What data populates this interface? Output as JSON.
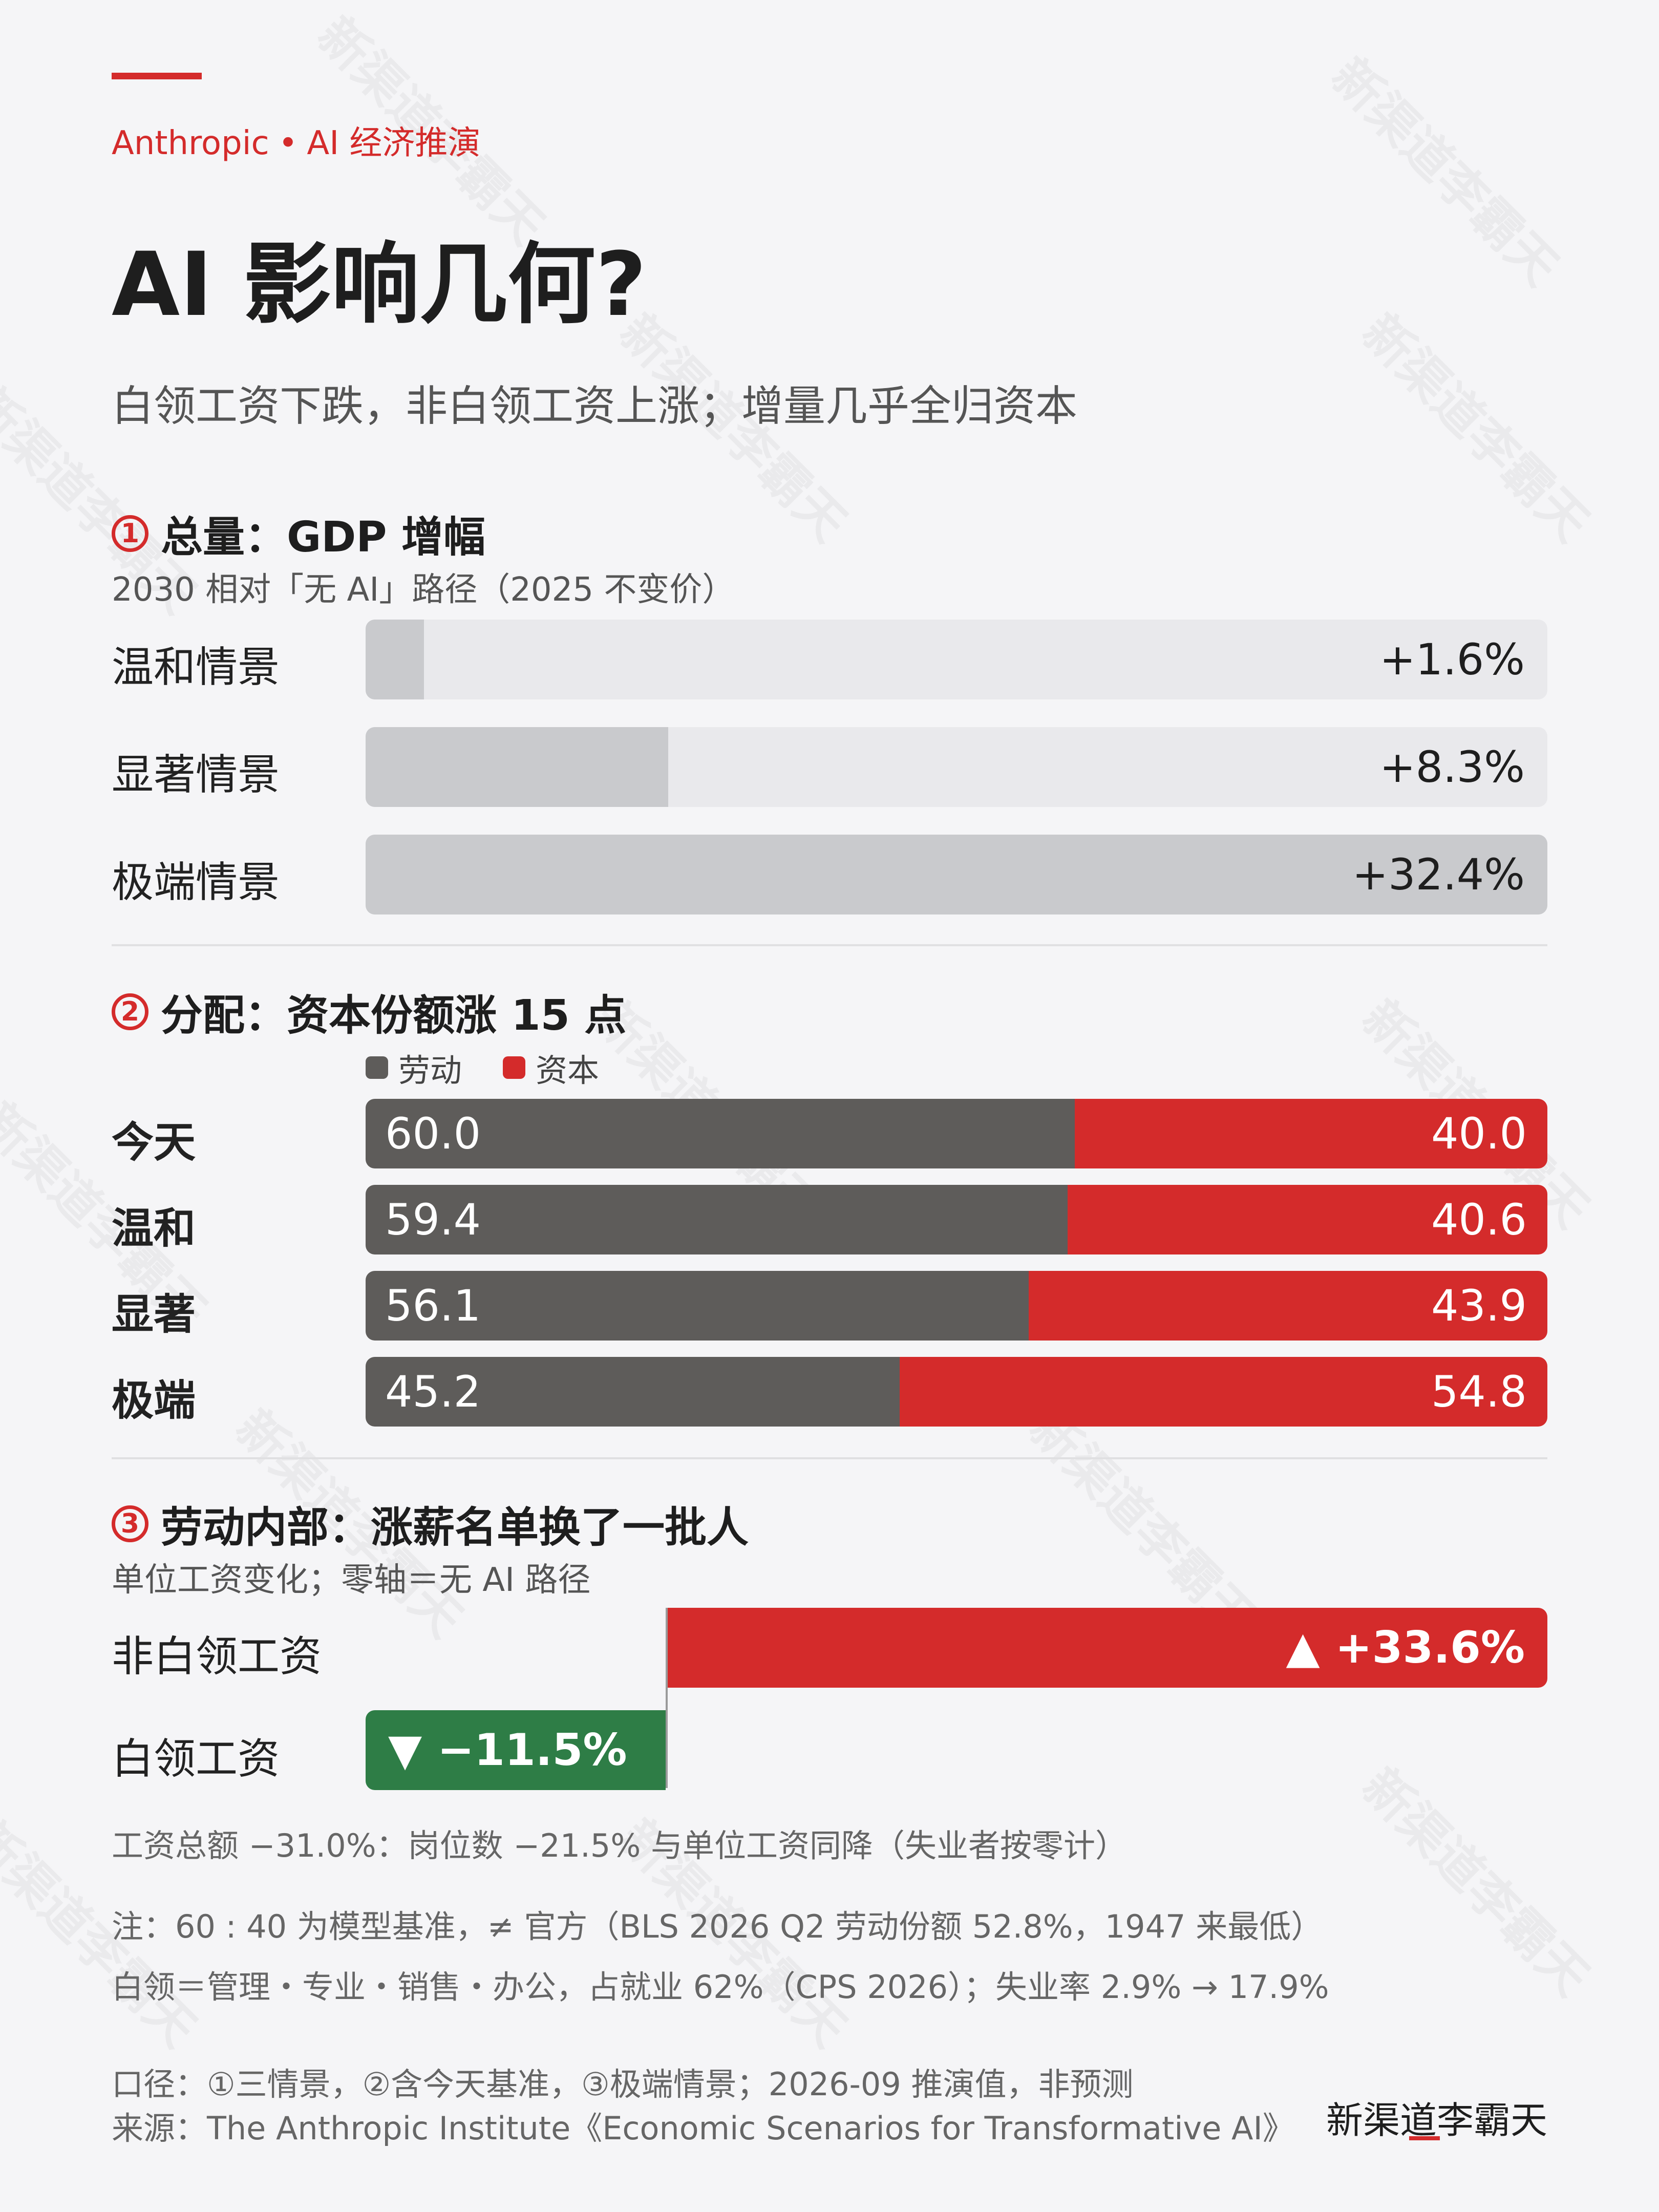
{
  "header": {
    "kicker_brand": "Anthropic",
    "kicker_dot": "•",
    "kicker_topic": "AI 经济推演",
    "title": "AI 影响几何?",
    "subtitle": "白领工资下跌，非白领工资上涨；增量几乎全归资本"
  },
  "watermark": "新渠道李霸天",
  "colors": {
    "accent": "#d42b2b",
    "labor": "#5e5c5a",
    "capital": "#d42b2b",
    "positive": "#d42b2b",
    "negative": "#2e7d46",
    "gdp_bar": "#c9cacd",
    "gdp_track": "#e9e9ec"
  },
  "sections": {
    "s1": {
      "num": "1",
      "title": "总量：GDP 增幅",
      "sub": "2030 相对「无 AI」路径（2025 不变价）"
    },
    "s2": {
      "num": "2",
      "title": "分配：资本份额涨 15 点"
    },
    "s3": {
      "num": "3",
      "title": "劳动内部：涨薪名单换了一批人",
      "sub": "单位工资变化；零轴＝无 AI 路径"
    }
  },
  "chart_data": [
    {
      "type": "bar",
      "orientation": "horizontal",
      "categories": [
        "温和情景",
        "显著情景",
        "极端情景"
      ],
      "values": [
        1.6,
        8.3,
        32.4
      ],
      "labels": [
        "+1.6%",
        "+8.3%",
        "+32.4%"
      ],
      "xlim": [
        0,
        32.4
      ]
    },
    {
      "type": "bar",
      "orientation": "horizontal",
      "stacked": true,
      "categories": [
        "今天",
        "温和",
        "显著",
        "极端"
      ],
      "legend": [
        "劳动",
        "资本"
      ],
      "series": [
        {
          "name": "劳动",
          "values": [
            "60.0",
            "59.4",
            "56.1",
            "45.2"
          ]
        },
        {
          "name": "资本",
          "values": [
            "40.0",
            "40.6",
            "43.9",
            "54.8"
          ]
        }
      ]
    },
    {
      "type": "bar",
      "orientation": "horizontal",
      "diverging": true,
      "categories": [
        "非白领工资",
        "白领工资"
      ],
      "values": [
        33.6,
        -11.5
      ],
      "labels": [
        "▲ +33.6%",
        "▼ −11.5%"
      ]
    }
  ],
  "notes": {
    "wage_total": "工资总额 −31.0%：岗位数 −21.5% 与单位工资同降（失业者按零计）",
    "note1": "注：60 : 40 为模型基准，≠ 官方（BLS 2026 Q2 劳动份额 52.8%，1947 来最低）",
    "note2": "白领＝管理・专业・销售・办公，占就业 62%（CPS 2026）；失业率 2.9% → 17.9%",
    "scope": "口径：①三情景，②含今天基准，③极端情景；2026-09 推演值，非预测",
    "source": "来源：The Anthropic Institute《Economic Scenarios for Transformative AI》"
  },
  "brand": "新渠道李霸天"
}
